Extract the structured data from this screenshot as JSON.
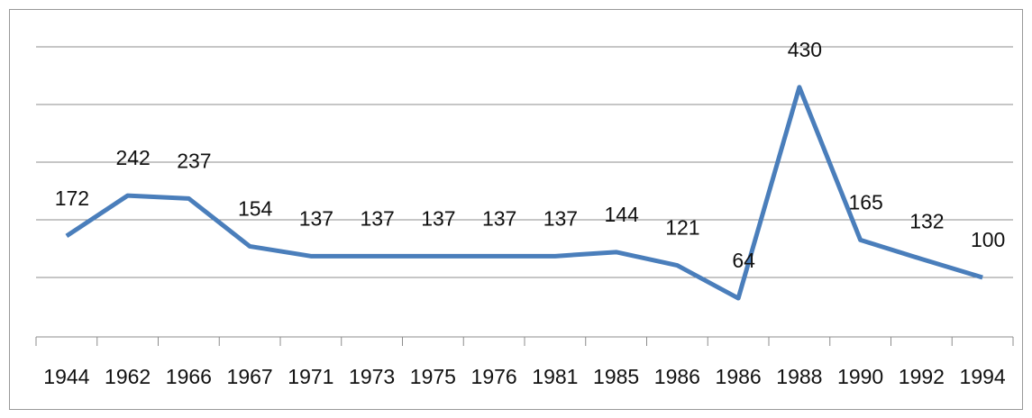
{
  "chart_data": {
    "type": "line",
    "categories": [
      "1944",
      "1962",
      "1966",
      "1967",
      "1971",
      "1973",
      "1975",
      "1976",
      "1981",
      "1985",
      "1986",
      "1986",
      "1988",
      "1990",
      "1992",
      "1994"
    ],
    "values": [
      172,
      242,
      237,
      154,
      137,
      137,
      137,
      137,
      137,
      144,
      121,
      64,
      430,
      165,
      132,
      100
    ],
    "color": "#4a7ebb",
    "ylim": [
      0,
      500
    ],
    "yticks": [
      100,
      200,
      300,
      400,
      500
    ],
    "grid": true
  }
}
